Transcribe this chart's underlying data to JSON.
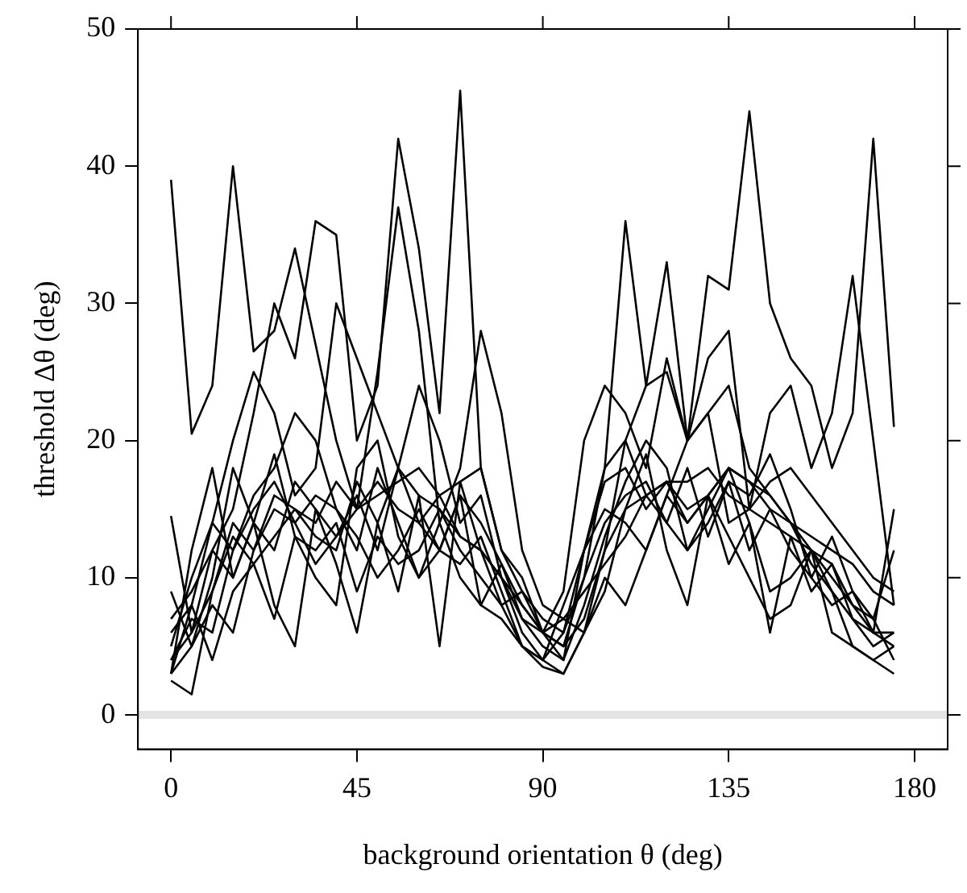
{
  "chart_data": {
    "type": "line",
    "xlabel": "background orientation θ (deg)",
    "ylabel": "threshold Δθ (deg)",
    "x": [
      0,
      5,
      10,
      15,
      20,
      25,
      30,
      35,
      40,
      45,
      50,
      55,
      60,
      65,
      70,
      75,
      80,
      85,
      90,
      95,
      100,
      105,
      110,
      115,
      120,
      125,
      130,
      135,
      140,
      145,
      150,
      155,
      160,
      165,
      170,
      175
    ],
    "xlim": [
      -8,
      188
    ],
    "xticks": [
      0,
      45,
      90,
      135,
      180
    ],
    "ylim": [
      -2.5,
      50
    ],
    "yticks": [
      0,
      10,
      20,
      30,
      40,
      50
    ],
    "grid": false,
    "legend": false,
    "marker": "none",
    "line_style": "solid",
    "ref_lines": [
      {
        "axis": "y",
        "value": 0,
        "color": "#e3e3e3"
      }
    ],
    "series": [
      {
        "color": "#000000",
        "values": [
          39,
          20.5,
          24,
          40,
          26.5,
          28,
          34,
          27,
          20,
          15,
          25,
          37,
          28,
          14,
          18,
          28,
          22,
          12,
          8,
          7,
          6,
          12,
          20,
          24,
          25,
          20,
          32,
          31,
          44,
          30,
          26,
          24,
          18,
          22,
          42,
          21
        ]
      },
      {
        "color": "#000000",
        "values": [
          4,
          6,
          12,
          15,
          22,
          30,
          26,
          36,
          35,
          20,
          24,
          42,
          34,
          22,
          45.5,
          18,
          12,
          10,
          6,
          5,
          10,
          18,
          36,
          24,
          33,
          20,
          26,
          28,
          15,
          22,
          24,
          18,
          22,
          32,
          20,
          8
        ]
      },
      {
        "color": "#000000",
        "values": [
          14.5,
          6,
          9,
          14,
          12,
          16,
          15,
          13,
          12,
          17,
          14,
          18,
          16,
          15,
          12,
          10,
          8,
          5,
          4,
          6,
          12,
          18,
          20,
          16,
          17,
          14,
          16,
          18,
          17,
          15,
          12,
          10,
          8,
          9,
          6,
          15
        ]
      },
      {
        "color": "#000000",
        "values": [
          3,
          8,
          14,
          20,
          25,
          22,
          16,
          18,
          30,
          26,
          22,
          18,
          24,
          20,
          14,
          16,
          10,
          8,
          6,
          9,
          20,
          24,
          22,
          18,
          26,
          20,
          22,
          24,
          18,
          16,
          14,
          12,
          10,
          8,
          6,
          5
        ]
      },
      {
        "color": "#000000",
        "values": [
          9,
          5,
          10,
          18,
          14,
          12,
          17,
          15,
          13,
          15,
          17,
          15,
          14,
          16,
          17,
          18,
          12,
          9,
          7,
          6,
          10,
          14,
          16,
          17,
          14,
          12,
          15,
          18,
          17,
          16,
          14,
          13,
          12,
          11,
          9,
          8
        ]
      },
      {
        "color": "#000000",
        "values": [
          3,
          5,
          8,
          6,
          12,
          15,
          14,
          16,
          15,
          13,
          10,
          12,
          15,
          12,
          11,
          13,
          9,
          5,
          4,
          8,
          12,
          15,
          14,
          12,
          16,
          20,
          22,
          14,
          15,
          17,
          18,
          16,
          14,
          12,
          10,
          9
        ]
      },
      {
        "color": "#000000",
        "values": [
          7,
          9,
          12,
          10,
          14,
          8,
          5,
          15,
          11,
          6,
          14,
          9,
          16,
          5,
          17,
          12,
          10,
          6,
          4,
          3,
          6,
          9,
          15,
          19,
          12,
          8,
          16,
          11,
          14,
          6,
          13,
          9,
          11,
          7,
          5,
          6
        ]
      },
      {
        "color": "#000000",
        "values": [
          5,
          10,
          14,
          12,
          16,
          18,
          22,
          20,
          15,
          12,
          18,
          14,
          10,
          12,
          16,
          8,
          11,
          7,
          5,
          4,
          8,
          13,
          17,
          20,
          18,
          12,
          14,
          17,
          16,
          19,
          15,
          10,
          13,
          9,
          7,
          4
        ]
      },
      {
        "color": "#000000",
        "values": [
          2.5,
          1.5,
          9,
          13,
          11,
          7,
          13,
          10,
          8,
          18,
          20,
          13,
          10,
          14,
          10,
          8,
          7,
          5,
          3.5,
          3,
          6,
          10,
          8,
          12,
          16,
          14,
          16,
          13,
          10,
          7,
          8,
          12,
          9,
          5,
          4,
          3
        ]
      },
      {
        "color": "#000000",
        "values": [
          4,
          7,
          6,
          12,
          15,
          17,
          14,
          11,
          13,
          16,
          12,
          18,
          14,
          12,
          16,
          14,
          11,
          8,
          6,
          5,
          7,
          12,
          15,
          16,
          14,
          18,
          13,
          17,
          12,
          15,
          14,
          11,
          9,
          7,
          6,
          6
        ]
      },
      {
        "color": "#000000",
        "values": [
          6,
          8,
          4,
          9,
          11,
          13,
          15,
          14,
          17,
          15,
          16,
          17,
          18,
          16,
          13,
          12,
          10,
          7,
          6,
          7,
          9,
          11,
          13,
          16,
          17,
          17,
          18,
          16,
          15,
          14,
          13,
          12,
          11,
          8,
          7,
          12
        ]
      },
      {
        "color": "#000000",
        "values": [
          3,
          12,
          18,
          10,
          14,
          19,
          13,
          12,
          14,
          9,
          13,
          11,
          12,
          15,
          13,
          12,
          8,
          9,
          6,
          4,
          12,
          17,
          18,
          15,
          17,
          15,
          16,
          18,
          14,
          9,
          10,
          12,
          6,
          5,
          4,
          5
        ]
      }
    ]
  }
}
